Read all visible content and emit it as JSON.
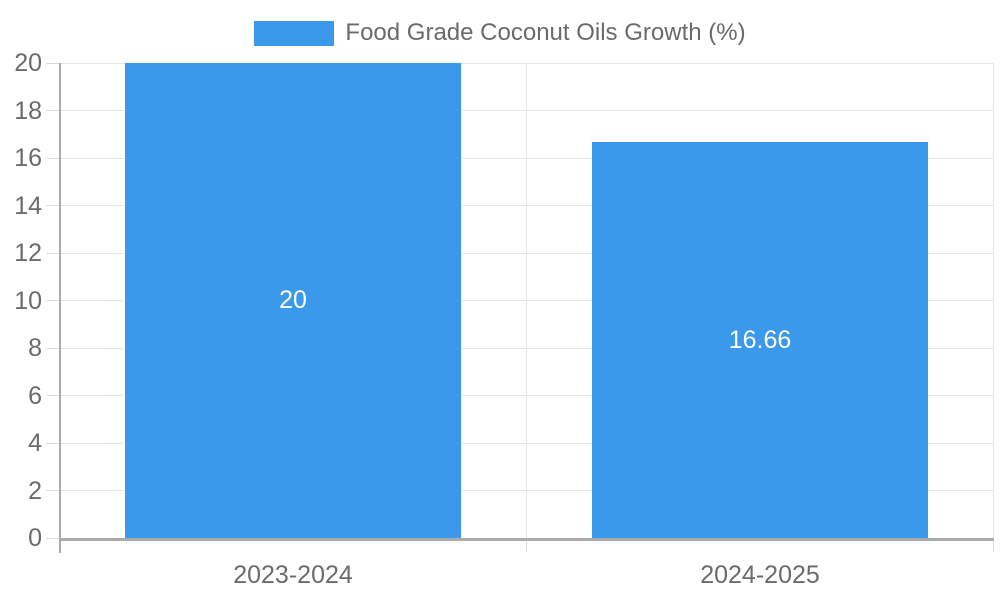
{
  "chart_data": {
    "type": "bar",
    "title": "Food Grade Coconut Oils Growth (%)",
    "legend": {
      "label": "Food Grade Coconut Oils Growth (%)",
      "position": "top",
      "swatch_color": "#3B99EC"
    },
    "categories": [
      "2023-2024",
      "2024-2025"
    ],
    "series": [
      {
        "name": "Food Grade Coconut Oils Growth (%)",
        "values": [
          20,
          16.66
        ]
      }
    ],
    "bar_value_labels": [
      "20",
      "16.66"
    ],
    "ylim": [
      0,
      20
    ],
    "ytick_step": 2,
    "ytick_labels": [
      "0",
      "2",
      "4",
      "6",
      "8",
      "10",
      "12",
      "14",
      "16",
      "18",
      "20"
    ],
    "grid": true,
    "colors": {
      "bar": "#3B99EC",
      "grid": "#E6E6E6",
      "tick": "#DCDCDC",
      "axis": "#ABABAB",
      "tick_text": "#6B6B6B",
      "legend_text": "#6B6B6B",
      "value_label": "#FFFFFF",
      "background": "#FFFFFF"
    }
  }
}
